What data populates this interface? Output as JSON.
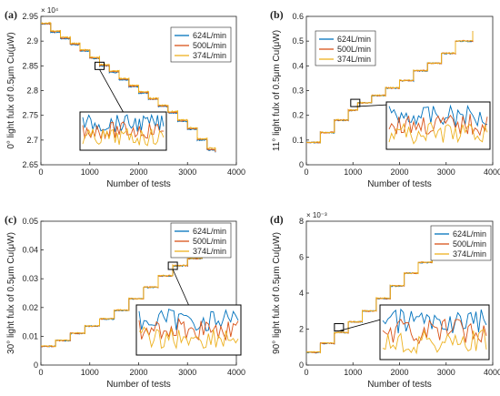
{
  "colors": {
    "blue": "#0072BD",
    "orange": "#D95319",
    "yellow": "#EDB120"
  },
  "chart_data": [
    {
      "panel_label": "(a)",
      "type": "line",
      "xlabel": "Number of tests",
      "ylabel": "0° light fulx of 0.5μm Cu(μW)",
      "exponent": "× 10⁴",
      "xlim": [
        0,
        4000
      ],
      "ylim": [
        2.65,
        2.95
      ],
      "xticks": [
        "0",
        "1000",
        "2000",
        "3000",
        "4000"
      ],
      "yticks": [
        "2.65",
        "2.7",
        "2.75",
        "2.8",
        "2.85",
        "2.9",
        "2.95"
      ],
      "legend_position": "top-right",
      "series": [
        {
          "name": "624L/min",
          "color_key": "blue",
          "x_end": 3570,
          "points": [
            [
              0,
              2.935
            ],
            [
              200,
              2.918
            ],
            [
              400,
              2.905
            ],
            [
              600,
              2.893
            ],
            [
              800,
              2.88
            ],
            [
              1000,
              2.865
            ],
            [
              1200,
              2.85
            ],
            [
              1400,
              2.837
            ],
            [
              1600,
              2.822
            ],
            [
              1800,
              2.808
            ],
            [
              2000,
              2.795
            ],
            [
              2200,
              2.782
            ],
            [
              2400,
              2.768
            ],
            [
              2600,
              2.755
            ],
            [
              2800,
              2.738
            ],
            [
              3000,
              2.722
            ],
            [
              3200,
              2.7
            ],
            [
              3400,
              2.68
            ],
            [
              3570,
              2.675
            ]
          ]
        },
        {
          "name": "500L/min",
          "color_key": "orange",
          "x_end": 3570,
          "points": [
            [
              0,
              2.935
            ],
            [
              200,
              2.919
            ],
            [
              400,
              2.906
            ],
            [
              600,
              2.894
            ],
            [
              800,
              2.881
            ],
            [
              1000,
              2.866
            ],
            [
              1200,
              2.851
            ],
            [
              1400,
              2.838
            ],
            [
              1600,
              2.823
            ],
            [
              1800,
              2.809
            ],
            [
              2000,
              2.796
            ],
            [
              2200,
              2.783
            ],
            [
              2400,
              2.769
            ],
            [
              2600,
              2.756
            ],
            [
              2800,
              2.739
            ],
            [
              3000,
              2.723
            ],
            [
              3200,
              2.701
            ],
            [
              3400,
              2.681
            ],
            [
              3570,
              2.676
            ]
          ]
        },
        {
          "name": "374L/min",
          "color_key": "yellow",
          "x_end": 3570,
          "points": [
            [
              0,
              2.936
            ],
            [
              200,
              2.92
            ],
            [
              400,
              2.907
            ],
            [
              600,
              2.895
            ],
            [
              800,
              2.882
            ],
            [
              1000,
              2.867
            ],
            [
              1200,
              2.852
            ],
            [
              1400,
              2.839
            ],
            [
              1600,
              2.824
            ],
            [
              1800,
              2.81
            ],
            [
              2000,
              2.797
            ],
            [
              2200,
              2.784
            ],
            [
              2400,
              2.77
            ],
            [
              2600,
              2.757
            ],
            [
              2800,
              2.74
            ],
            [
              3000,
              2.724
            ],
            [
              3200,
              2.702
            ],
            [
              3400,
              2.683
            ],
            [
              3570,
              2.679
            ]
          ]
        }
      ],
      "inset_pointer": [
        1200,
        2.85
      ]
    },
    {
      "panel_label": "(b)",
      "type": "line",
      "xlabel": "Number of tests",
      "ylabel": "11° light fulx of 0.5μm Cu(μW)",
      "xlim": [
        0,
        4000
      ],
      "ylim": [
        0,
        0.6
      ],
      "xticks": [
        "0",
        "1000",
        "2000",
        "3000",
        "4000"
      ],
      "yticks": [
        "0",
        "0.1",
        "0.2",
        "0.3",
        "0.4",
        "0.5",
        "0.6"
      ],
      "legend_position": "top-left",
      "series": [
        {
          "name": "624L/min",
          "color_key": "blue",
          "x_end": 3570,
          "points": [
            [
              0,
              0.09
            ],
            [
              300,
              0.13
            ],
            [
              600,
              0.18
            ],
            [
              900,
              0.22
            ],
            [
              1100,
              0.25
            ],
            [
              1400,
              0.28
            ],
            [
              1700,
              0.31
            ],
            [
              2000,
              0.34
            ],
            [
              2300,
              0.38
            ],
            [
              2600,
              0.41
            ],
            [
              2900,
              0.45
            ],
            [
              3200,
              0.5
            ],
            [
              3570,
              0.54
            ]
          ]
        },
        {
          "name": "500L/min",
          "color_key": "orange",
          "x_end": 3570,
          "points": [
            [
              0,
              0.09
            ],
            [
              300,
              0.13
            ],
            [
              600,
              0.18
            ],
            [
              900,
              0.22
            ],
            [
              1100,
              0.25
            ],
            [
              1400,
              0.28
            ],
            [
              1700,
              0.31
            ],
            [
              2000,
              0.34
            ],
            [
              2300,
              0.38
            ],
            [
              2600,
              0.41
            ],
            [
              2900,
              0.45
            ],
            [
              3200,
              0.5
            ],
            [
              3570,
              0.54
            ]
          ]
        },
        {
          "name": "374L/min",
          "color_key": "yellow",
          "x_end": 3570,
          "points": [
            [
              0,
              0.09
            ],
            [
              300,
              0.13
            ],
            [
              600,
              0.18
            ],
            [
              900,
              0.22
            ],
            [
              1100,
              0.25
            ],
            [
              1400,
              0.28
            ],
            [
              1700,
              0.31
            ],
            [
              2000,
              0.34
            ],
            [
              2300,
              0.38
            ],
            [
              2600,
              0.41
            ],
            [
              2900,
              0.45
            ],
            [
              3200,
              0.5
            ],
            [
              3570,
              0.54
            ]
          ]
        }
      ],
      "inset_pointer": [
        1050,
        0.25
      ]
    },
    {
      "panel_label": "(c)",
      "type": "line",
      "xlabel": "Number of tests",
      "ylabel": "30° light fulx of 0.5μm Cu(μW)",
      "xlim": [
        0,
        4000
      ],
      "ylim": [
        0,
        0.05
      ],
      "xticks": [
        "0",
        "1000",
        "2000",
        "3000",
        "4000"
      ],
      "yticks": [
        "0",
        "0.01",
        "0.02",
        "0.03",
        "0.04",
        "0.05"
      ],
      "legend_position": "top-right",
      "series": [
        {
          "name": "624L/min",
          "color_key": "blue",
          "x_end": 3700,
          "points": [
            [
              0,
              0.0065
            ],
            [
              300,
              0.0085
            ],
            [
              600,
              0.011
            ],
            [
              900,
              0.0135
            ],
            [
              1200,
              0.016
            ],
            [
              1500,
              0.019
            ],
            [
              1800,
              0.023
            ],
            [
              2100,
              0.027
            ],
            [
              2400,
              0.031
            ],
            [
              2700,
              0.0345
            ],
            [
              3000,
              0.037
            ],
            [
              3300,
              0.039
            ],
            [
              3700,
              0.041
            ]
          ]
        },
        {
          "name": "500L/min",
          "color_key": "orange",
          "x_end": 3700,
          "points": [
            [
              0,
              0.0065
            ],
            [
              300,
              0.0085
            ],
            [
              600,
              0.011
            ],
            [
              900,
              0.0135
            ],
            [
              1200,
              0.016
            ],
            [
              1500,
              0.019
            ],
            [
              1800,
              0.023
            ],
            [
              2100,
              0.027
            ],
            [
              2400,
              0.031
            ],
            [
              2700,
              0.0345
            ],
            [
              3000,
              0.037
            ],
            [
              3300,
              0.039
            ],
            [
              3700,
              0.041
            ]
          ]
        },
        {
          "name": "374L/min",
          "color_key": "yellow",
          "x_end": 3700,
          "points": [
            [
              0,
              0.0065
            ],
            [
              300,
              0.0085
            ],
            [
              600,
              0.011
            ],
            [
              900,
              0.0135
            ],
            [
              1200,
              0.016
            ],
            [
              1500,
              0.019
            ],
            [
              1800,
              0.023
            ],
            [
              2100,
              0.027
            ],
            [
              2400,
              0.031
            ],
            [
              2700,
              0.0345
            ],
            [
              3000,
              0.037
            ],
            [
              3300,
              0.039
            ],
            [
              3700,
              0.041
            ]
          ]
        }
      ],
      "inset_pointer": [
        2700,
        0.0345
      ]
    },
    {
      "panel_label": "(d)",
      "type": "line",
      "xlabel": "Number of tests",
      "ylabel": "90° light fulx of 0.5μm Cu(μW)",
      "exponent": "× 10⁻³",
      "xlim": [
        0,
        4000
      ],
      "ylim": [
        0,
        8
      ],
      "xticks": [
        "0",
        "1000",
        "2000",
        "3000",
        "4000"
      ],
      "yticks": [
        "0",
        "2",
        "4",
        "6",
        "8"
      ],
      "legend_position": "top-right",
      "series": [
        {
          "name": "624L/min",
          "color_key": "blue",
          "x_end": 3600,
          "points": [
            [
              0,
              0.7
            ],
            [
              300,
              1.2
            ],
            [
              600,
              1.8
            ],
            [
              900,
              2.4
            ],
            [
              1200,
              3.0
            ],
            [
              1500,
              3.7
            ],
            [
              1800,
              4.4
            ],
            [
              2100,
              5.1
            ],
            [
              2400,
              5.7
            ],
            [
              2700,
              6.3
            ],
            [
              3000,
              6.8
            ],
            [
              3300,
              7.2
            ],
            [
              3600,
              7.35
            ]
          ]
        },
        {
          "name": "500L/min",
          "color_key": "orange",
          "x_end": 3600,
          "points": [
            [
              0,
              0.7
            ],
            [
              300,
              1.2
            ],
            [
              600,
              1.8
            ],
            [
              900,
              2.4
            ],
            [
              1200,
              3.0
            ],
            [
              1500,
              3.7
            ],
            [
              1800,
              4.4
            ],
            [
              2100,
              5.1
            ],
            [
              2400,
              5.7
            ],
            [
              2700,
              6.3
            ],
            [
              3000,
              6.8
            ],
            [
              3300,
              7.2
            ],
            [
              3600,
              7.35
            ]
          ]
        },
        {
          "name": "374L/min",
          "color_key": "yellow",
          "x_end": 3600,
          "points": [
            [
              0,
              0.7
            ],
            [
              300,
              1.2
            ],
            [
              600,
              1.8
            ],
            [
              900,
              2.4
            ],
            [
              1200,
              3.0
            ],
            [
              1500,
              3.7
            ],
            [
              1800,
              4.4
            ],
            [
              2100,
              5.1
            ],
            [
              2400,
              5.7
            ],
            [
              2700,
              6.3
            ],
            [
              3000,
              6.8
            ],
            [
              3300,
              7.2
            ],
            [
              3600,
              7.35
            ]
          ]
        }
      ],
      "inset_pointer": [
        700,
        2.1
      ]
    }
  ]
}
